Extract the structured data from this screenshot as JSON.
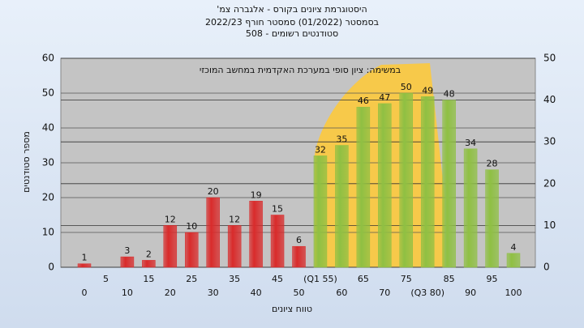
{
  "chart_data": {
    "type": "bar",
    "title": "היסטוגרמת ציונים בקורס - אלגברה צמ'",
    "subtitle": [
      "בסמסטר  (01/2022)  סמסטר חורף  2022/23",
      "סטודנטים רשומים - 508"
    ],
    "annotation": "במשימה: ציון סופי במערכת האקדמית במחשב המוכזי",
    "x_label": "טווח ציונים",
    "y_label": "מספר סטודנטים",
    "categories": [
      "0",
      "5",
      "10",
      "15",
      "20",
      "25",
      "30",
      "35",
      "40",
      "45",
      "50",
      "(Q1 55)",
      "60",
      "65",
      "70",
      "75",
      "(Q3 80)",
      "85",
      "90",
      "95",
      "100"
    ],
    "values": [
      1,
      null,
      3,
      2,
      12,
      10,
      20,
      12,
      19,
      15,
      6,
      32,
      35,
      46,
      47,
      50,
      49,
      48,
      34,
      28,
      4
    ],
    "colors": [
      "#d92b2b",
      null,
      "#d92b2b",
      "#d92b2b",
      "#d92b2b",
      "#d92b2b",
      "#d92b2b",
      "#d92b2b",
      "#d92b2b",
      "#d92b2b",
      "#d92b2b",
      "#8fc043",
      "#8fc043",
      "#8fc043",
      "#8fc043",
      "#8fc043",
      "#8fc043",
      "#8fc043",
      "#8fc043",
      "#8fc043",
      "#8fc043"
    ],
    "ylim": [
      0,
      60
    ],
    "yticks": [
      0,
      10,
      20,
      30,
      40,
      50,
      60
    ],
    "y2lim": [
      0,
      50
    ],
    "y2ticks": [
      0,
      10,
      20,
      30,
      40,
      50
    ],
    "grid": true
  }
}
